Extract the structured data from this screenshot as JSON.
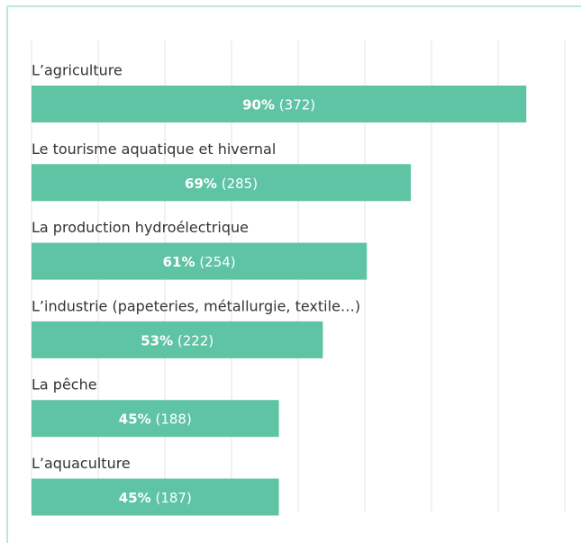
{
  "chart_data": {
    "type": "hbar",
    "categories": [
      "L’agriculture",
      "Le tourisme aquatique et hivernal",
      "La production hydroélectrique",
      "L’industrie (papeteries, métallurgie, textile…)",
      "La pêche",
      "L’aquaculture"
    ],
    "values": [
      90,
      69,
      61,
      53,
      45,
      45
    ],
    "value_labels": [
      "90%",
      "69%",
      "61%",
      "53%",
      "45%",
      "45%"
    ],
    "count_labels": [
      "(372)",
      "(285)",
      "(254)",
      "(222)",
      "(188)",
      "(187)"
    ],
    "color": "#5fc4a4",
    "xlim": [
      0,
      97
    ],
    "grid": true
  }
}
